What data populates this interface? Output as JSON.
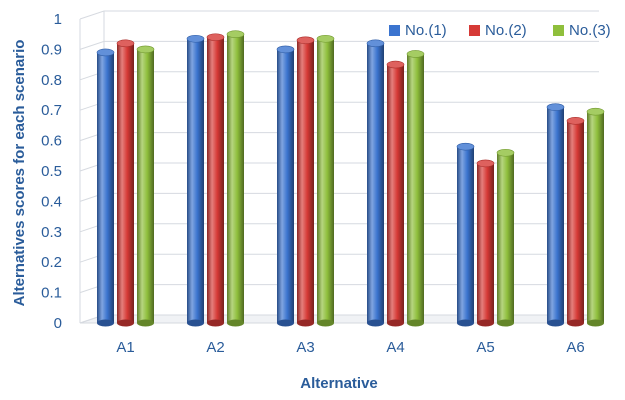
{
  "chart_data": {
    "type": "bar",
    "title": "",
    "xlabel": "Alternative",
    "ylabel": "Alternatives scores for each scenario",
    "categories": [
      "A1",
      "A2",
      "A3",
      "A4",
      "A5",
      "A6"
    ],
    "ylim": [
      0,
      1
    ],
    "yticks": [
      "0",
      "0.1",
      "0.2",
      "0.3",
      "0.4",
      "0.5",
      "0.6",
      "0.7",
      "0.8",
      "0.9",
      "1"
    ],
    "grid": true,
    "legend_position": "top-right",
    "series": [
      {
        "name": "No.(1)",
        "color": "#3b74cf",
        "values": [
          0.89,
          0.935,
          0.9,
          0.92,
          0.58,
          0.71
        ]
      },
      {
        "name": "No.(2)",
        "color": "#d63a36",
        "values": [
          0.92,
          0.94,
          0.93,
          0.85,
          0.525,
          0.665
        ]
      },
      {
        "name": "No.(3)",
        "color": "#8fbf3c",
        "values": [
          0.9,
          0.95,
          0.935,
          0.885,
          0.56,
          0.695
        ]
      }
    ],
    "text_color": "#2a5c9a"
  }
}
